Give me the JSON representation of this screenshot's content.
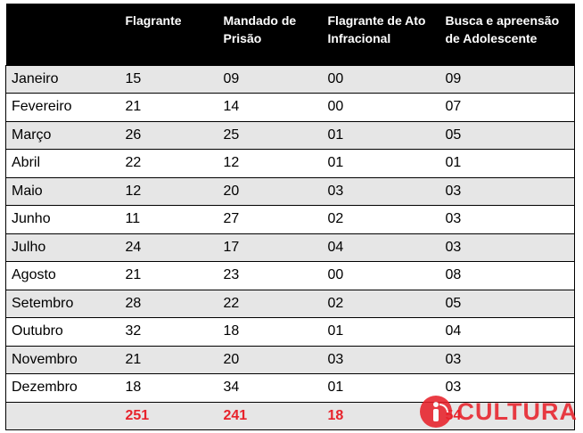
{
  "table": {
    "headers": [
      "",
      "Flagrante",
      "Mandado de Prisão",
      "Flagrante de Ato Infracional",
      "Busca e apreensão de Adolescente"
    ],
    "rows": [
      [
        "Janeiro",
        "15",
        "09",
        "00",
        "09"
      ],
      [
        "Fevereiro",
        "21",
        "14",
        "00",
        "07"
      ],
      [
        "Março",
        "26",
        "25",
        "01",
        "05"
      ],
      [
        "Abril",
        "22",
        "12",
        "01",
        "01"
      ],
      [
        "Maio",
        "12",
        "20",
        "03",
        "03"
      ],
      [
        "Junho",
        "11",
        "27",
        "02",
        "03"
      ],
      [
        "Julho",
        "24",
        "17",
        "04",
        "03"
      ],
      [
        "Agosto",
        "21",
        "23",
        "00",
        "08"
      ],
      [
        "Setembro",
        "28",
        "22",
        "02",
        "05"
      ],
      [
        "Outubro",
        "32",
        "18",
        "01",
        "04"
      ],
      [
        "Novembro",
        "21",
        "20",
        "03",
        "03"
      ],
      [
        "Dezembro",
        "18",
        "34",
        "01",
        "03"
      ]
    ],
    "totals": [
      "",
      "251",
      "241",
      "18",
      "54"
    ]
  },
  "watermark": {
    "text": "CULTURA",
    "icon": "info-icon",
    "color": "#e8222b"
  },
  "colors": {
    "header_bg": "#000000",
    "shade_row": "#e6e6e6",
    "total_text": "#e8222b"
  }
}
